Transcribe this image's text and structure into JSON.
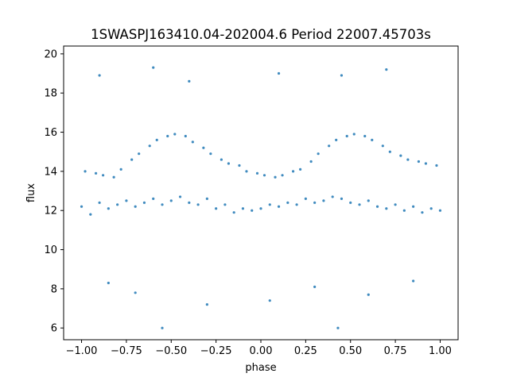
{
  "chart_data": {
    "type": "scatter",
    "title": "1SWASPJ163410.04-202004.6 Period 22007.45703s",
    "xlabel": "phase",
    "ylabel": "flux",
    "xlim": [
      -1.1,
      1.1
    ],
    "ylim": [
      5.4,
      20.4
    ],
    "x_ticks": [
      -1.0,
      -0.75,
      -0.5,
      -0.25,
      0.0,
      0.25,
      0.5,
      0.75,
      1.0
    ],
    "x_tick_labels": [
      "−1.00",
      "−0.75",
      "−0.50",
      "−0.25",
      "0.00",
      "0.25",
      "0.50",
      "0.75",
      "1.00"
    ],
    "y_ticks": [
      6,
      8,
      10,
      12,
      14,
      16,
      18,
      20
    ],
    "y_tick_labels": [
      "6",
      "8",
      "10",
      "12",
      "14",
      "16",
      "18",
      "20"
    ],
    "grid": false,
    "legend": "none",
    "point_color": "#1f77b4",
    "series": [
      {
        "description_free": true,
        "points": [
          [
            -1.0,
            12.2
          ],
          [
            -0.98,
            14.0
          ],
          [
            -0.95,
            11.8
          ],
          [
            -0.92,
            13.9
          ],
          [
            -0.9,
            12.4
          ],
          [
            -0.88,
            13.8
          ],
          [
            -0.85,
            12.1
          ],
          [
            -0.82,
            13.7
          ],
          [
            -0.8,
            12.3
          ],
          [
            -0.78,
            14.1
          ],
          [
            -0.75,
            12.5
          ],
          [
            -0.72,
            14.6
          ],
          [
            -0.7,
            12.2
          ],
          [
            -0.68,
            14.9
          ],
          [
            -0.65,
            12.4
          ],
          [
            -0.62,
            15.3
          ],
          [
            -0.6,
            12.6
          ],
          [
            -0.58,
            15.6
          ],
          [
            -0.55,
            12.3
          ],
          [
            -0.52,
            15.8
          ],
          [
            -0.5,
            12.5
          ],
          [
            -0.48,
            15.9
          ],
          [
            -0.45,
            12.7
          ],
          [
            -0.42,
            15.8
          ],
          [
            -0.4,
            12.4
          ],
          [
            -0.38,
            15.5
          ],
          [
            -0.35,
            12.3
          ],
          [
            -0.32,
            15.2
          ],
          [
            -0.3,
            12.6
          ],
          [
            -0.28,
            14.9
          ],
          [
            -0.25,
            12.1
          ],
          [
            -0.22,
            14.6
          ],
          [
            -0.2,
            12.3
          ],
          [
            -0.18,
            14.4
          ],
          [
            -0.15,
            11.9
          ],
          [
            -0.12,
            14.3
          ],
          [
            -0.1,
            12.1
          ],
          [
            -0.08,
            14.0
          ],
          [
            -0.05,
            12.0
          ],
          [
            -0.02,
            13.9
          ],
          [
            0.0,
            12.1
          ],
          [
            0.02,
            13.8
          ],
          [
            0.05,
            12.3
          ],
          [
            0.08,
            13.7
          ],
          [
            0.1,
            12.2
          ],
          [
            0.12,
            13.8
          ],
          [
            0.15,
            12.4
          ],
          [
            0.18,
            14.0
          ],
          [
            0.2,
            12.3
          ],
          [
            0.22,
            14.1
          ],
          [
            0.25,
            12.6
          ],
          [
            0.28,
            14.5
          ],
          [
            0.3,
            12.4
          ],
          [
            0.32,
            14.9
          ],
          [
            0.35,
            12.5
          ],
          [
            0.38,
            15.3
          ],
          [
            0.4,
            12.7
          ],
          [
            0.42,
            15.6
          ],
          [
            0.45,
            12.6
          ],
          [
            0.48,
            15.8
          ],
          [
            0.5,
            12.4
          ],
          [
            0.52,
            15.9
          ],
          [
            0.55,
            12.3
          ],
          [
            0.58,
            15.8
          ],
          [
            0.6,
            12.5
          ],
          [
            0.62,
            15.6
          ],
          [
            0.65,
            12.2
          ],
          [
            0.68,
            15.3
          ],
          [
            0.7,
            12.1
          ],
          [
            0.72,
            15.0
          ],
          [
            0.75,
            12.3
          ],
          [
            0.78,
            14.8
          ],
          [
            0.8,
            12.0
          ],
          [
            0.82,
            14.6
          ],
          [
            0.85,
            12.2
          ],
          [
            0.88,
            14.5
          ],
          [
            0.9,
            11.9
          ],
          [
            0.92,
            14.4
          ],
          [
            0.95,
            12.1
          ],
          [
            0.98,
            14.3
          ],
          [
            1.0,
            12.0
          ],
          [
            -0.9,
            18.9
          ],
          [
            -0.6,
            19.3
          ],
          [
            -0.4,
            18.6
          ],
          [
            0.1,
            19.0
          ],
          [
            0.45,
            18.9
          ],
          [
            0.7,
            19.2
          ],
          [
            -0.85,
            8.3
          ],
          [
            -0.7,
            7.8
          ],
          [
            -0.3,
            7.2
          ],
          [
            0.05,
            7.4
          ],
          [
            0.3,
            8.1
          ],
          [
            0.6,
            7.7
          ],
          [
            0.85,
            8.4
          ],
          [
            -0.55,
            6.0
          ],
          [
            0.43,
            6.0
          ]
        ]
      }
    ]
  }
}
